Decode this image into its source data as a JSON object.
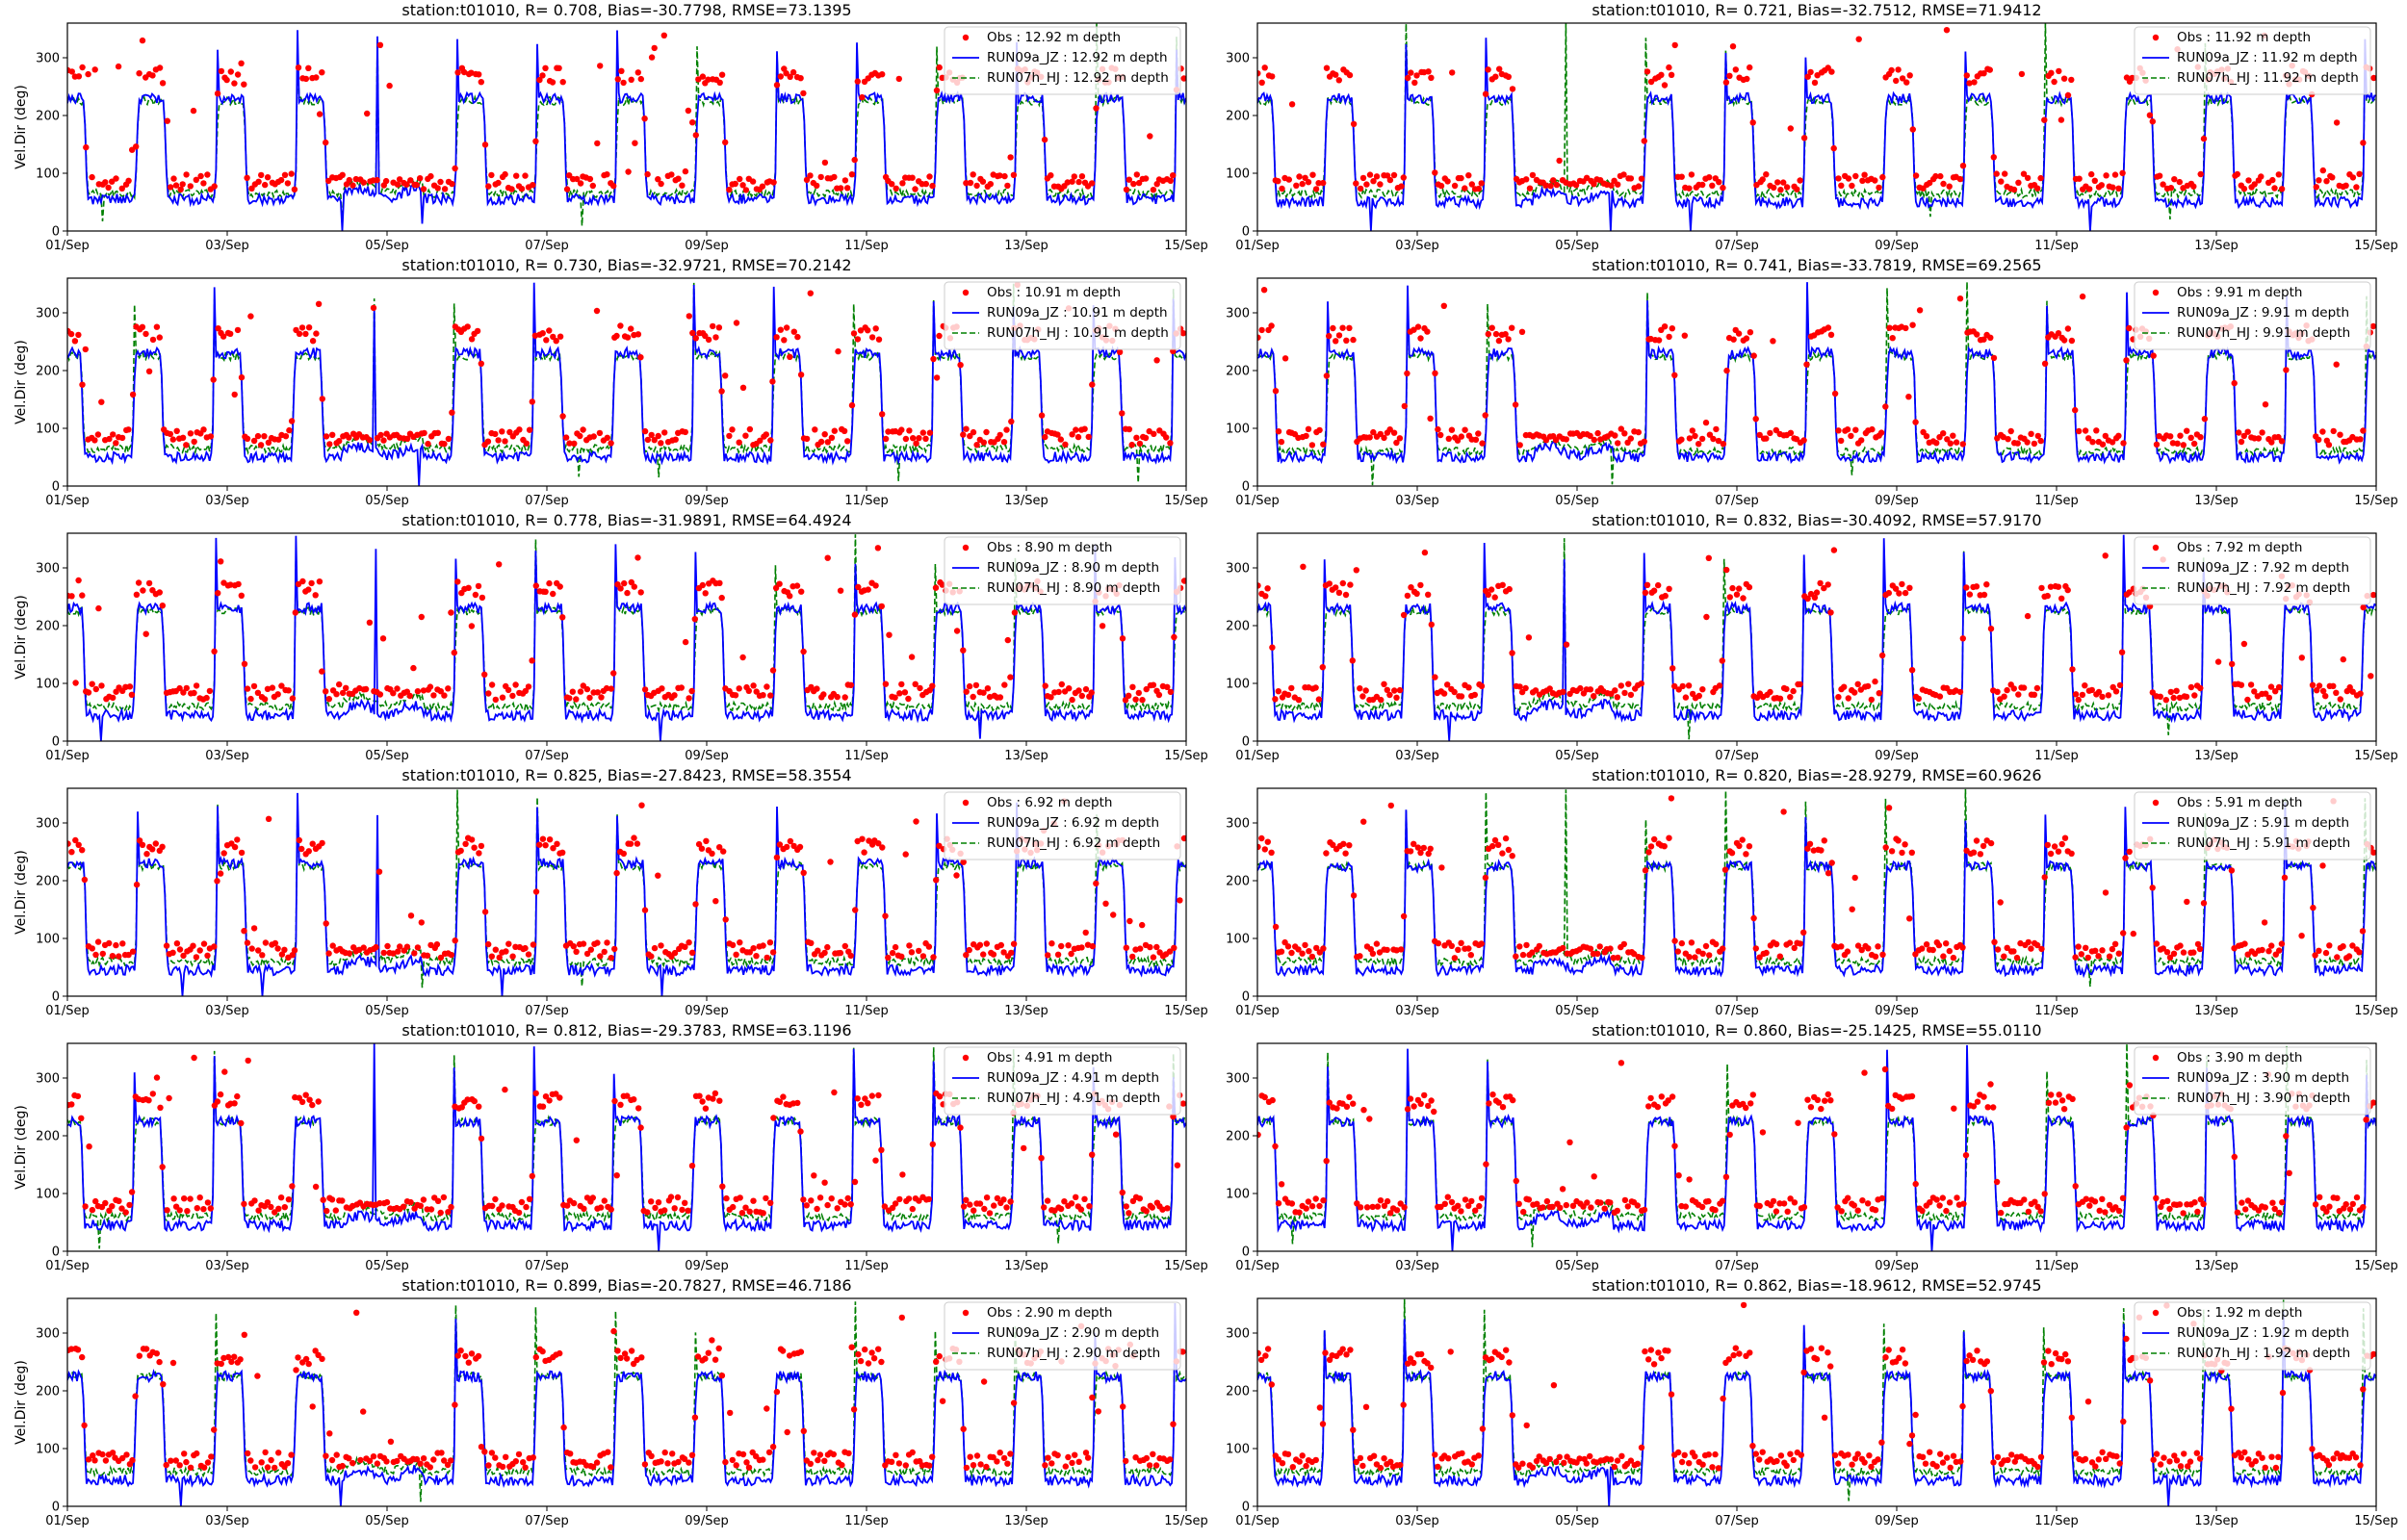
{
  "colors": {
    "obs": "#ff0000",
    "run09a": "#0000ff",
    "run07h": "#008000"
  },
  "chart_data": [
    {
      "type": "line",
      "title": "station:t01010, R= 0.708, Bias=-30.7798, RMSE=73.1395",
      "ylabel": "Vel.Dir (deg)",
      "ylim": [
        0,
        360
      ],
      "xlim": [
        "01/Sep",
        "15/Sep"
      ],
      "xticks": [
        "01/Sep",
        "03/Sep",
        "05/Sep",
        "07/Sep",
        "09/Sep",
        "11/Sep",
        "13/Sep",
        "15/Sep"
      ],
      "yticks": [
        0,
        100,
        200,
        300
      ],
      "legend": [
        "Obs : 12.92 m depth",
        "RUN09a_JZ : 12.92 m depth",
        "RUN07h_HJ : 12.92 m depth"
      ],
      "legend_position": "upper right",
      "obs_levels": [
        85,
        270
      ],
      "model_run09a_levels": [
        55,
        230
      ],
      "model_run07h_levels": [
        65,
        225
      ]
    },
    {
      "type": "line",
      "title": "station:t01010, R= 0.721, Bias=-32.7512, RMSE=71.9412",
      "ylabel": "",
      "ylim": [
        0,
        360
      ],
      "xlim": [
        "01/Sep",
        "15/Sep"
      ],
      "xticks": [
        "01/Sep",
        "03/Sep",
        "05/Sep",
        "07/Sep",
        "09/Sep",
        "11/Sep",
        "13/Sep",
        "15/Sep"
      ],
      "yticks": [
        0,
        100,
        200,
        300
      ],
      "legend": [
        "Obs : 11.92 m depth",
        "RUN09a_JZ : 11.92 m depth",
        "RUN07h_HJ : 11.92 m depth"
      ],
      "legend_position": "upper right",
      "obs_levels": [
        85,
        270
      ],
      "model_run09a_levels": [
        50,
        230
      ],
      "model_run07h_levels": [
        65,
        225
      ]
    },
    {
      "type": "line",
      "title": "station:t01010, R= 0.730, Bias=-32.9721, RMSE=70.2142",
      "ylabel": "Vel.Dir (deg)",
      "ylim": [
        0,
        360
      ],
      "xlim": [
        "01/Sep",
        "15/Sep"
      ],
      "xticks": [
        "01/Sep",
        "03/Sep",
        "05/Sep",
        "07/Sep",
        "09/Sep",
        "11/Sep",
        "13/Sep",
        "15/Sep"
      ],
      "yticks": [
        0,
        100,
        200,
        300
      ],
      "legend": [
        "Obs : 10.91 m depth",
        "RUN09a_JZ : 10.91 m depth",
        "RUN07h_HJ : 10.91 m depth"
      ],
      "legend_position": "upper right",
      "obs_levels": [
        85,
        265
      ],
      "model_run09a_levels": [
        50,
        230
      ],
      "model_run07h_levels": [
        65,
        225
      ]
    },
    {
      "type": "line",
      "title": "station:t01010, R= 0.741, Bias=-33.7819, RMSE=69.2565",
      "ylabel": "",
      "ylim": [
        0,
        360
      ],
      "xlim": [
        "01/Sep",
        "15/Sep"
      ],
      "xticks": [
        "01/Sep",
        "03/Sep",
        "05/Sep",
        "07/Sep",
        "09/Sep",
        "11/Sep",
        "13/Sep",
        "15/Sep"
      ],
      "yticks": [
        0,
        100,
        200,
        300
      ],
      "legend": [
        "Obs : 9.91 m depth",
        "RUN09a_JZ : 9.91 m depth",
        "RUN07h_HJ : 9.91 m depth"
      ],
      "legend_position": "upper right",
      "obs_levels": [
        85,
        265
      ],
      "model_run09a_levels": [
        50,
        230
      ],
      "model_run07h_levels": [
        60,
        225
      ]
    },
    {
      "type": "line",
      "title": "station:t01010, R= 0.778, Bias=-31.9891, RMSE=64.4924",
      "ylabel": "Vel.Dir (deg)",
      "ylim": [
        0,
        360
      ],
      "xlim": [
        "01/Sep",
        "15/Sep"
      ],
      "xticks": [
        "01/Sep",
        "03/Sep",
        "05/Sep",
        "07/Sep",
        "09/Sep",
        "11/Sep",
        "13/Sep",
        "15/Sep"
      ],
      "yticks": [
        0,
        100,
        200,
        300
      ],
      "legend": [
        "Obs : 8.90 m depth",
        "RUN09a_JZ : 8.90 m depth",
        "RUN07h_HJ : 8.90 m depth"
      ],
      "legend_position": "upper right",
      "obs_levels": [
        85,
        265
      ],
      "model_run09a_levels": [
        45,
        230
      ],
      "model_run07h_levels": [
        60,
        225
      ]
    },
    {
      "type": "line",
      "title": "station:t01010, R= 0.832, Bias=-30.4092, RMSE=57.9170",
      "ylabel": "",
      "ylim": [
        0,
        360
      ],
      "xlim": [
        "01/Sep",
        "15/Sep"
      ],
      "xticks": [
        "01/Sep",
        "03/Sep",
        "05/Sep",
        "07/Sep",
        "09/Sep",
        "11/Sep",
        "13/Sep",
        "15/Sep"
      ],
      "yticks": [
        0,
        100,
        200,
        300
      ],
      "legend": [
        "Obs : 7.92 m depth",
        "RUN09a_JZ : 7.92 m depth",
        "RUN07h_HJ : 7.92 m depth"
      ],
      "legend_position": "upper right",
      "obs_levels": [
        85,
        260
      ],
      "model_run09a_levels": [
        45,
        230
      ],
      "model_run07h_levels": [
        60,
        225
      ]
    },
    {
      "type": "line",
      "title": "station:t01010, R= 0.825, Bias=-27.8423, RMSE=58.3554",
      "ylabel": "Vel.Dir (deg)",
      "ylim": [
        0,
        360
      ],
      "xlim": [
        "01/Sep",
        "15/Sep"
      ],
      "xticks": [
        "01/Sep",
        "03/Sep",
        "05/Sep",
        "07/Sep",
        "09/Sep",
        "11/Sep",
        "13/Sep",
        "15/Sep"
      ],
      "yticks": [
        0,
        100,
        200,
        300
      ],
      "legend": [
        "Obs : 6.92 m depth",
        "RUN09a_JZ : 6.92 m depth",
        "RUN07h_HJ : 6.92 m depth"
      ],
      "legend_position": "upper right",
      "obs_levels": [
        80,
        260
      ],
      "model_run09a_levels": [
        45,
        230
      ],
      "model_run07h_levels": [
        60,
        225
      ]
    },
    {
      "type": "line",
      "title": "station:t01010, R= 0.820, Bias=-28.9279, RMSE=60.9626",
      "ylabel": "",
      "ylim": [
        0,
        360
      ],
      "xlim": [
        "01/Sep",
        "15/Sep"
      ],
      "xticks": [
        "01/Sep",
        "03/Sep",
        "05/Sep",
        "07/Sep",
        "09/Sep",
        "11/Sep",
        "13/Sep",
        "15/Sep"
      ],
      "yticks": [
        0,
        100,
        200,
        300
      ],
      "legend": [
        "Obs : 5.91 m depth",
        "RUN09a_JZ : 5.91 m depth",
        "RUN07h_HJ : 5.91 m depth"
      ],
      "legend_position": "upper right",
      "obs_levels": [
        80,
        260
      ],
      "model_run09a_levels": [
        45,
        225
      ],
      "model_run07h_levels": [
        60,
        225
      ]
    },
    {
      "type": "line",
      "title": "station:t01010, R= 0.812, Bias=-29.3783, RMSE=63.1196",
      "ylabel": "Vel.Dir (deg)",
      "ylim": [
        0,
        360
      ],
      "xlim": [
        "01/Sep",
        "15/Sep"
      ],
      "xticks": [
        "01/Sep",
        "03/Sep",
        "05/Sep",
        "07/Sep",
        "09/Sep",
        "11/Sep",
        "13/Sep",
        "15/Sep"
      ],
      "yticks": [
        0,
        100,
        200,
        300
      ],
      "legend": [
        "Obs : 4.91 m depth",
        "RUN09a_JZ : 4.91 m depth",
        "RUN07h_HJ : 4.91 m depth"
      ],
      "legend_position": "upper right",
      "obs_levels": [
        80,
        260
      ],
      "model_run09a_levels": [
        45,
        225
      ],
      "model_run07h_levels": [
        60,
        225
      ]
    },
    {
      "type": "line",
      "title": "station:t01010, R= 0.860, Bias=-25.1425, RMSE=55.0110",
      "ylabel": "",
      "ylim": [
        0,
        360
      ],
      "xlim": [
        "01/Sep",
        "15/Sep"
      ],
      "xticks": [
        "01/Sep",
        "03/Sep",
        "05/Sep",
        "07/Sep",
        "09/Sep",
        "11/Sep",
        "13/Sep",
        "15/Sep"
      ],
      "yticks": [
        0,
        100,
        200,
        300
      ],
      "legend": [
        "Obs : 3.90 m depth",
        "RUN09a_JZ : 3.90 m depth",
        "RUN07h_HJ : 3.90 m depth"
      ],
      "legend_position": "upper right",
      "obs_levels": [
        80,
        260
      ],
      "model_run09a_levels": [
        45,
        225
      ],
      "model_run07h_levels": [
        60,
        225
      ]
    },
    {
      "type": "line",
      "title": "station:t01010, R= 0.899, Bias=-20.7827, RMSE=46.7186",
      "ylabel": "Vel.Dir (deg)",
      "ylim": [
        0,
        360
      ],
      "xlim": [
        "01/Sep",
        "15/Sep"
      ],
      "xticks": [
        "01/Sep",
        "03/Sep",
        "05/Sep",
        "07/Sep",
        "09/Sep",
        "11/Sep",
        "13/Sep",
        "15/Sep"
      ],
      "yticks": [
        0,
        100,
        200,
        300
      ],
      "legend": [
        "Obs : 2.90 m depth",
        "RUN09a_JZ : 2.90 m depth",
        "RUN07h_HJ : 2.90 m depth"
      ],
      "legend_position": "upper right",
      "obs_levels": [
        80,
        260
      ],
      "model_run09a_levels": [
        45,
        225
      ],
      "model_run07h_levels": [
        60,
        225
      ]
    },
    {
      "type": "line",
      "title": "station:t01010, R= 0.862, Bias=-18.9612, RMSE=52.9745",
      "ylabel": "",
      "ylim": [
        0,
        360
      ],
      "xlim": [
        "01/Sep",
        "15/Sep"
      ],
      "xticks": [
        "01/Sep",
        "03/Sep",
        "05/Sep",
        "07/Sep",
        "09/Sep",
        "11/Sep",
        "13/Sep",
        "15/Sep"
      ],
      "yticks": [
        0,
        100,
        200,
        300
      ],
      "legend": [
        "Obs : 1.92 m depth",
        "RUN09a_JZ : 1.92 m depth",
        "RUN07h_HJ : 1.92 m depth"
      ],
      "legend_position": "upper right",
      "obs_levels": [
        80,
        260
      ],
      "model_run09a_levels": [
        45,
        225
      ],
      "model_run07h_levels": [
        60,
        225
      ]
    }
  ]
}
